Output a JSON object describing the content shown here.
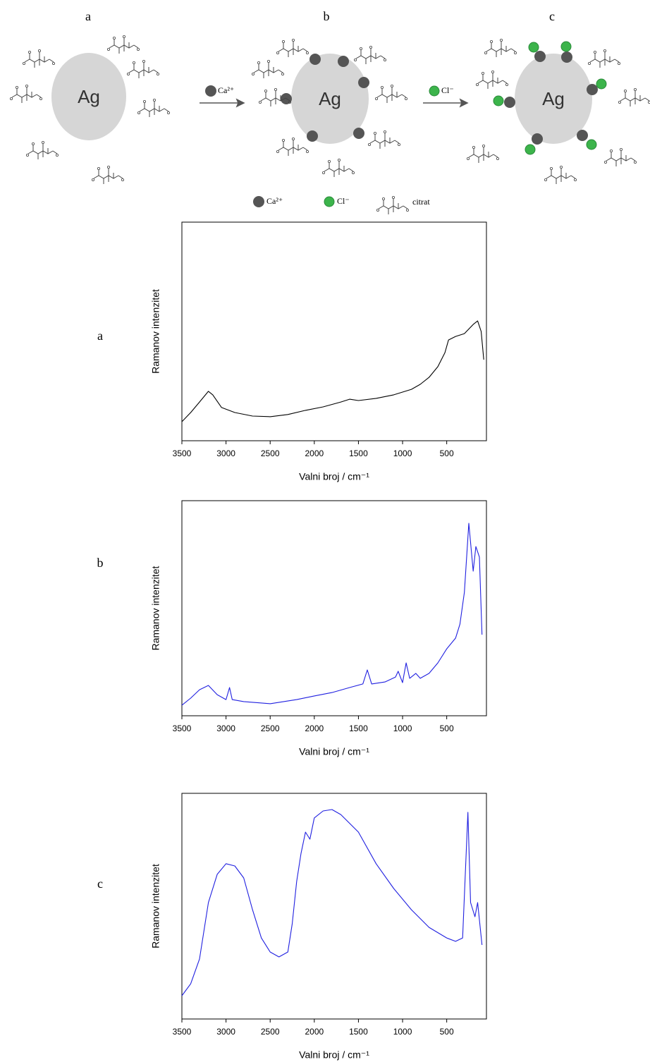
{
  "diagram": {
    "panels": [
      "a",
      "b",
      "c"
    ],
    "particle": "Ag",
    "arrow_labels": [
      "Ca²⁺",
      "Cl⁻"
    ],
    "legend": [
      "Ca²⁺",
      "Cl⁻",
      "citrat"
    ]
  },
  "chart_data": [
    {
      "type": "line",
      "panel": "a",
      "xlabel": "Valni broj / cm⁻¹",
      "ylabel": "Ramanov intenzitet",
      "xlim": [
        3500,
        50
      ],
      "ylim": [
        0,
        100
      ],
      "xticks": [
        3500,
        3000,
        2500,
        2000,
        1500,
        1000,
        500
      ],
      "color": "#000000",
      "x": [
        3500,
        3400,
        3300,
        3200,
        3150,
        3050,
        2900,
        2700,
        2500,
        2300,
        2100,
        1900,
        1700,
        1600,
        1500,
        1300,
        1100,
        900,
        800,
        700,
        600,
        520,
        480,
        400,
        300,
        200,
        150,
        110,
        80
      ],
      "values": [
        8.7,
        12.9,
        17.7,
        22.6,
        21,
        15.2,
        12.9,
        11.3,
        11,
        12,
        13.9,
        15.5,
        17.7,
        19,
        18.4,
        19.4,
        21,
        23.5,
        25.8,
        29,
        33.9,
        40.3,
        46.1,
        47.7,
        49,
        53.2,
        54.8,
        50,
        37.1
      ]
    },
    {
      "type": "line",
      "panel": "b",
      "xlabel": "Valni broj / cm⁻¹",
      "ylabel": "Ramanov intenzitet",
      "xlim": [
        3500,
        50
      ],
      "ylim": [
        0,
        100
      ],
      "xticks": [
        3500,
        3000,
        2500,
        2000,
        1500,
        1000,
        500
      ],
      "color": "#2020e0",
      "x": [
        3500,
        3400,
        3300,
        3200,
        3100,
        3000,
        2960,
        2930,
        2800,
        2500,
        2200,
        2000,
        1800,
        1600,
        1450,
        1400,
        1350,
        1200,
        1080,
        1050,
        1000,
        960,
        920,
        850,
        800,
        700,
        600,
        500,
        400,
        350,
        300,
        250,
        200,
        170,
        130,
        100
      ],
      "values": [
        4.9,
        8.2,
        12.1,
        14.1,
        9.8,
        7.5,
        13.1,
        7.5,
        6.6,
        5.6,
        7.5,
        9.2,
        10.8,
        13.1,
        14.8,
        21.3,
        14.8,
        15.7,
        18,
        20.7,
        15.4,
        24.6,
        17.4,
        19.7,
        17.4,
        19.7,
        24.6,
        31.1,
        36.1,
        42.6,
        57.4,
        89.5,
        67.2,
        78.7,
        73.8,
        37.7
      ]
    },
    {
      "type": "line",
      "panel": "c",
      "xlabel": "Valni broj / cm⁻¹",
      "ylabel": "Ramanov intenzitet",
      "xlim": [
        3500,
        50
      ],
      "ylim": [
        0,
        100
      ],
      "xticks": [
        3500,
        3000,
        2500,
        2000,
        1500,
        1000,
        500
      ],
      "color": "#2020e0",
      "x": [
        3500,
        3400,
        3300,
        3200,
        3100,
        3000,
        2900,
        2800,
        2700,
        2600,
        2500,
        2400,
        2300,
        2250,
        2200,
        2150,
        2100,
        2050,
        2000,
        1900,
        1800,
        1700,
        1500,
        1300,
        1100,
        900,
        700,
        500,
        400,
        320,
        260,
        230,
        180,
        150,
        100
      ],
      "values": [
        10.3,
        15.6,
        26.6,
        51.6,
        64.1,
        68.8,
        67.8,
        62.5,
        48.4,
        35.9,
        29.7,
        27.5,
        29.7,
        42.2,
        60.9,
        73.4,
        82.8,
        79.7,
        89.1,
        92.2,
        92.8,
        90.6,
        82.8,
        68.8,
        57.8,
        48.4,
        40.6,
        35.9,
        34.4,
        35.9,
        91.6,
        51.6,
        45.3,
        51.6,
        32.8
      ]
    }
  ]
}
